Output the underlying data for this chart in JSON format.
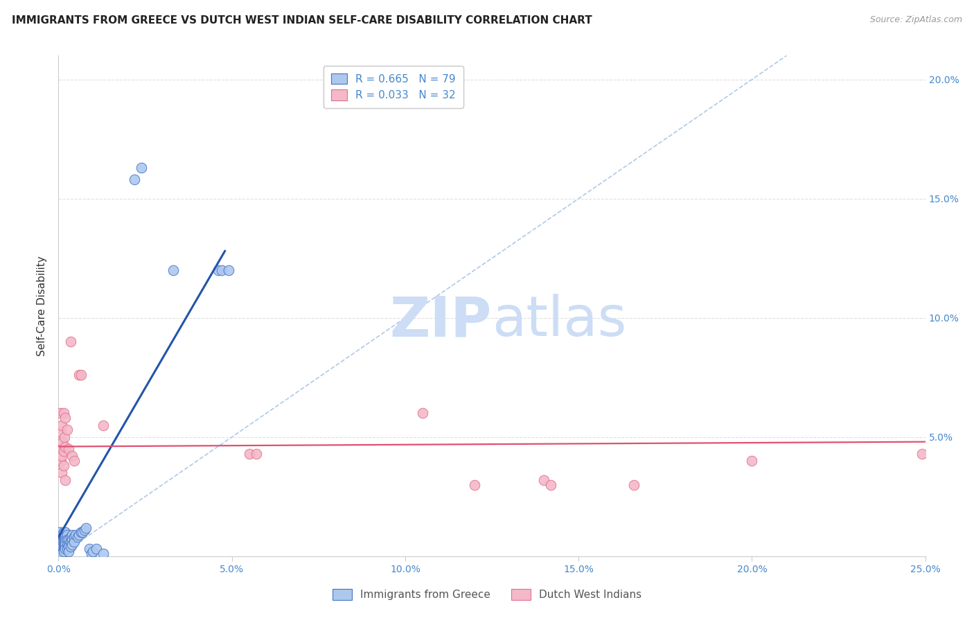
{
  "title": "IMMIGRANTS FROM GREECE VS DUTCH WEST INDIAN SELF-CARE DISABILITY CORRELATION CHART",
  "source": "Source: ZipAtlas.com",
  "ylabel": "Self-Care Disability",
  "xlim": [
    0,
    0.25
  ],
  "ylim": [
    0,
    0.21
  ],
  "xticks": [
    0.0,
    0.05,
    0.1,
    0.15,
    0.2,
    0.25
  ],
  "yticks": [
    0.0,
    0.05,
    0.1,
    0.15,
    0.2
  ],
  "xticklabels": [
    "0.0%",
    "5.0%",
    "10.0%",
    "15.0%",
    "20.0%",
    "25.0%"
  ],
  "yticklabels_right": [
    "",
    "5.0%",
    "10.0%",
    "15.0%",
    "20.0%"
  ],
  "blue_scatter_color": "#adc8ef",
  "blue_edge_color": "#4472c4",
  "pink_scatter_color": "#f4b8c8",
  "pink_edge_color": "#e07090",
  "blue_line_color": "#2255aa",
  "pink_line_color": "#e05070",
  "diag_color": "#b0c8e8",
  "grid_color": "#e0e0e0",
  "background_color": "#ffffff",
  "watermark_color": "#ccddf5",
  "title_fontsize": 11,
  "source_fontsize": 9,
  "blue_points": [
    [
      0.0003,
      0.01
    ],
    [
      0.0005,
      0.008
    ],
    [
      0.0005,
      0.006
    ],
    [
      0.0005,
      0.005
    ],
    [
      0.0005,
      0.004
    ],
    [
      0.0005,
      0.003
    ],
    [
      0.0005,
      0.003
    ],
    [
      0.0005,
      0.002
    ],
    [
      0.0007,
      0.007
    ],
    [
      0.0007,
      0.005
    ],
    [
      0.0007,
      0.004
    ],
    [
      0.0007,
      0.003
    ],
    [
      0.0008,
      0.008
    ],
    [
      0.0008,
      0.006
    ],
    [
      0.0008,
      0.004
    ],
    [
      0.0008,
      0.003
    ],
    [
      0.001,
      0.009
    ],
    [
      0.001,
      0.007
    ],
    [
      0.001,
      0.006
    ],
    [
      0.001,
      0.005
    ],
    [
      0.001,
      0.004
    ],
    [
      0.001,
      0.003
    ],
    [
      0.001,
      0.002
    ],
    [
      0.001,
      0.001
    ],
    [
      0.0012,
      0.008
    ],
    [
      0.0012,
      0.006
    ],
    [
      0.0012,
      0.005
    ],
    [
      0.0012,
      0.004
    ],
    [
      0.0015,
      0.01
    ],
    [
      0.0015,
      0.008
    ],
    [
      0.0015,
      0.006
    ],
    [
      0.0015,
      0.004
    ],
    [
      0.0015,
      0.003
    ],
    [
      0.0015,
      0.002
    ],
    [
      0.0018,
      0.009
    ],
    [
      0.0018,
      0.007
    ],
    [
      0.0018,
      0.005
    ],
    [
      0.0018,
      0.004
    ],
    [
      0.002,
      0.01
    ],
    [
      0.002,
      0.008
    ],
    [
      0.002,
      0.007
    ],
    [
      0.002,
      0.006
    ],
    [
      0.002,
      0.005
    ],
    [
      0.002,
      0.003
    ],
    [
      0.0025,
      0.009
    ],
    [
      0.0025,
      0.007
    ],
    [
      0.0025,
      0.005
    ],
    [
      0.0025,
      0.003
    ],
    [
      0.003,
      0.007
    ],
    [
      0.003,
      0.005
    ],
    [
      0.003,
      0.004
    ],
    [
      0.003,
      0.002
    ],
    [
      0.0035,
      0.008
    ],
    [
      0.0035,
      0.006
    ],
    [
      0.0035,
      0.004
    ],
    [
      0.004,
      0.009
    ],
    [
      0.004,
      0.007
    ],
    [
      0.004,
      0.005
    ],
    [
      0.0045,
      0.008
    ],
    [
      0.0045,
      0.006
    ],
    [
      0.005,
      0.009
    ],
    [
      0.0055,
      0.008
    ],
    [
      0.006,
      0.009
    ],
    [
      0.0065,
      0.01
    ],
    [
      0.007,
      0.01
    ],
    [
      0.0075,
      0.011
    ],
    [
      0.008,
      0.012
    ],
    [
      0.009,
      0.003
    ],
    [
      0.0095,
      0.001
    ],
    [
      0.01,
      0.002
    ],
    [
      0.011,
      0.003
    ],
    [
      0.013,
      0.001
    ],
    [
      0.022,
      0.158
    ],
    [
      0.024,
      0.163
    ],
    [
      0.033,
      0.12
    ],
    [
      0.046,
      0.12
    ],
    [
      0.047,
      0.12
    ],
    [
      0.049,
      0.12
    ]
  ],
  "pink_points": [
    [
      0.0005,
      0.06
    ],
    [
      0.0005,
      0.045
    ],
    [
      0.0007,
      0.052
    ],
    [
      0.0008,
      0.04
    ],
    [
      0.001,
      0.055
    ],
    [
      0.001,
      0.042
    ],
    [
      0.001,
      0.035
    ],
    [
      0.0012,
      0.048
    ],
    [
      0.0015,
      0.06
    ],
    [
      0.0015,
      0.044
    ],
    [
      0.0015,
      0.038
    ],
    [
      0.0018,
      0.05
    ],
    [
      0.002,
      0.058
    ],
    [
      0.002,
      0.046
    ],
    [
      0.002,
      0.032
    ],
    [
      0.0025,
      0.053
    ],
    [
      0.003,
      0.045
    ],
    [
      0.0035,
      0.09
    ],
    [
      0.004,
      0.042
    ],
    [
      0.0045,
      0.04
    ],
    [
      0.006,
      0.076
    ],
    [
      0.0065,
      0.076
    ],
    [
      0.013,
      0.055
    ],
    [
      0.055,
      0.043
    ],
    [
      0.057,
      0.043
    ],
    [
      0.105,
      0.06
    ],
    [
      0.12,
      0.03
    ],
    [
      0.14,
      0.032
    ],
    [
      0.142,
      0.03
    ],
    [
      0.166,
      0.03
    ],
    [
      0.2,
      0.04
    ],
    [
      0.249,
      0.043
    ]
  ],
  "blue_line": {
    "x0": 0.0,
    "y0": 0.008,
    "x1": 0.048,
    "y1": 0.128
  },
  "pink_line": {
    "x0": 0.0,
    "y0": 0.046,
    "x1": 0.25,
    "y1": 0.048
  },
  "diag_line": {
    "x0": 0.0,
    "y0": 0.0,
    "x1": 0.21,
    "y1": 0.21
  }
}
